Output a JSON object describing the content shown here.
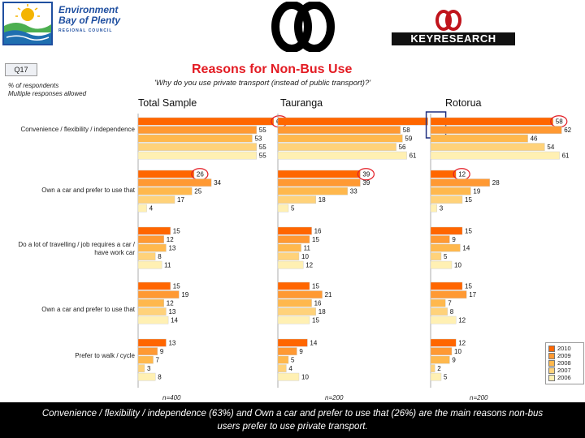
{
  "header": {
    "logo_left": {
      "line1": "Environment",
      "line2": "Bay of Plenty",
      "line3": "REGIONAL COUNCIL"
    },
    "logo_right": {
      "text": "KEYRESEARCH"
    },
    "question_badge": "Q17",
    "title": "Reasons for Non-Bus Use",
    "subtitle": "'Why do you use private transport (instead of public transport)?'",
    "pct_note_line1": "% of respondents",
    "pct_note_line2": "Multiple responses allowed"
  },
  "colors": {
    "title": "#e31b23",
    "series": [
      "#ff6600",
      "#ff9933",
      "#ffb84d",
      "#ffd27a",
      "#fff0b3"
    ],
    "circle": "#e31b23",
    "box": "#1f2f80"
  },
  "chart_data": {
    "type": "bar",
    "orientation": "horizontal",
    "panels": [
      "Total Sample",
      "Tauranga",
      "Rotorua"
    ],
    "categories": [
      "Convenience / flexibility / independence",
      "Own a car and prefer to use that",
      "Do a lot of travelling / job requires a car / have work car",
      "Own a car and prefer to use that",
      "Prefer to walk / cycle"
    ],
    "series": [
      {
        "name": "2010",
        "values": {
          "Total Sample": [
            63,
            26,
            15,
            15,
            13
          ],
          "Tauranga": [
            71,
            39,
            16,
            15,
            14
          ],
          "Rotorua": [
            58,
            12,
            15,
            15,
            12
          ]
        }
      },
      {
        "name": "2009",
        "values": {
          "Total Sample": [
            55,
            34,
            12,
            19,
            9
          ],
          "Tauranga": [
            58,
            39,
            15,
            21,
            9
          ],
          "Rotorua": [
            62,
            28,
            9,
            17,
            10
          ]
        }
      },
      {
        "name": "2008",
        "values": {
          "Total Sample": [
            53,
            25,
            13,
            12,
            7
          ],
          "Tauranga": [
            59,
            33,
            11,
            16,
            5
          ],
          "Rotorua": [
            46,
            19,
            14,
            7,
            9
          ]
        }
      },
      {
        "name": "2007",
        "values": {
          "Total Sample": [
            55,
            17,
            8,
            13,
            3
          ],
          "Tauranga": [
            56,
            18,
            10,
            18,
            4
          ],
          "Rotorua": [
            54,
            15,
            5,
            8,
            2
          ]
        }
      },
      {
        "name": "2006",
        "values": {
          "Total Sample": [
            55,
            4,
            11,
            14,
            8
          ],
          "Tauranga": [
            61,
            5,
            12,
            15,
            10
          ],
          "Rotorua": [
            61,
            3,
            10,
            12,
            5
          ]
        }
      }
    ],
    "sample_sizes": [
      "n=400",
      "n=200",
      "n=200"
    ],
    "highlights": {
      "circled": [
        {
          "panel": "Total Sample",
          "category": 0,
          "series": "2010"
        },
        {
          "panel": "Total Sample",
          "category": 1,
          "series": "2010"
        },
        {
          "panel": "Tauranga",
          "category": 1,
          "series": "2010"
        },
        {
          "panel": "Rotorua",
          "category": 0,
          "series": "2010"
        },
        {
          "panel": "Rotorua",
          "category": 1,
          "series": "2010"
        }
      ],
      "boxed": [
        {
          "panel": "Tauranga",
          "category": 0,
          "series": "2010"
        }
      ]
    },
    "legend": {
      "position": "bottom-right",
      "entries": [
        "2010",
        "2009",
        "2008",
        "2007",
        "2006"
      ]
    },
    "grid": false
  },
  "footer": {
    "summary_line1": "Convenience / flexibility / independence (63%) and Own a car and prefer to use that (26%) are the main reasons non-bus",
    "summary_line2": "users prefer to use private transport."
  }
}
